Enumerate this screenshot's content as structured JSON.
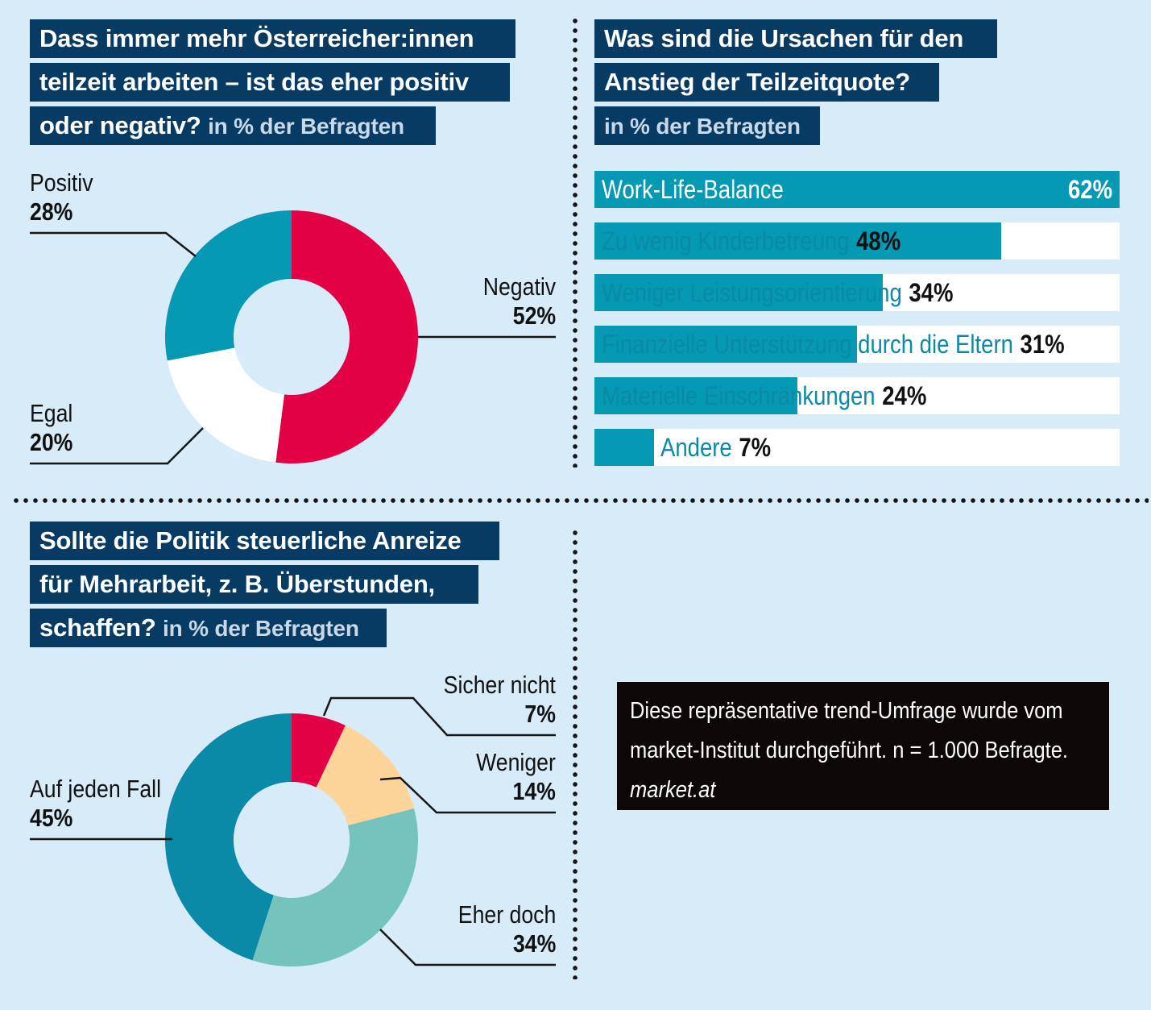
{
  "unit_suffix": "in % der Befragten",
  "colors": {
    "background": "#d8ebf8",
    "title_bg": "#073b63",
    "negativ": "#e30045",
    "egal": "#ffffff",
    "positiv": "#0599b4",
    "bar": "#0599b4",
    "sicher_nicht": "#e30045",
    "weniger": "#fdd59a",
    "eher_doch": "#74c3bd",
    "auf_jeden_fall": "#0a8aa6",
    "hole": "#d8ebf8",
    "note_bg": "#0d0707"
  },
  "chart_data": [
    {
      "type": "pie",
      "donut": true,
      "title_lines": [
        "Dass immer mehr Österreicher:innen",
        "teilzeit arbeiten – ist das eher positiv",
        "oder negativ?"
      ],
      "subtitle": "in % der Befragten",
      "labels": [
        "Negativ",
        "Egal",
        "Positiv"
      ],
      "values": [
        52,
        20,
        28
      ],
      "value_labels": [
        "52%",
        "20%",
        "28%"
      ]
    },
    {
      "type": "bar",
      "orientation": "horizontal",
      "title_lines": [
        "Was sind die Ursachen für den",
        "Anstieg der Teilzeitquote?"
      ],
      "subtitle": "in % der Befragten",
      "categories": [
        "Work-Life-Balance",
        "Zu wenig Kinderbetreung",
        "Weniger Leistungsorientierung",
        "Finanzielle Unterstützung durch die Eltern",
        "Materielle Einschränkungen",
        "Andere"
      ],
      "values": [
        62,
        48,
        34,
        31,
        24,
        7
      ],
      "value_labels": [
        "62%",
        "48%",
        "34%",
        "31%",
        "24%",
        "7%"
      ],
      "xlim": [
        0,
        62
      ]
    },
    {
      "type": "pie",
      "donut": true,
      "title_lines": [
        "Sollte die Politik steuerliche Anreize",
        "für Mehrarbeit, z. B. Überstunden,",
        "schaffen?"
      ],
      "subtitle": "in % der Befragten",
      "labels": [
        "Sicher nicht",
        "Weniger",
        "Eher doch",
        "Auf jeden Fall"
      ],
      "values": [
        7,
        14,
        34,
        45
      ],
      "value_labels": [
        "7%",
        "14%",
        "34%",
        "45%"
      ]
    }
  ],
  "note": {
    "line1": "Diese repräsentative trend-Umfrage wurde vom",
    "line2": "market-Institut durchgeführt. n = 1.000 Befragte.",
    "source": "market.at"
  }
}
